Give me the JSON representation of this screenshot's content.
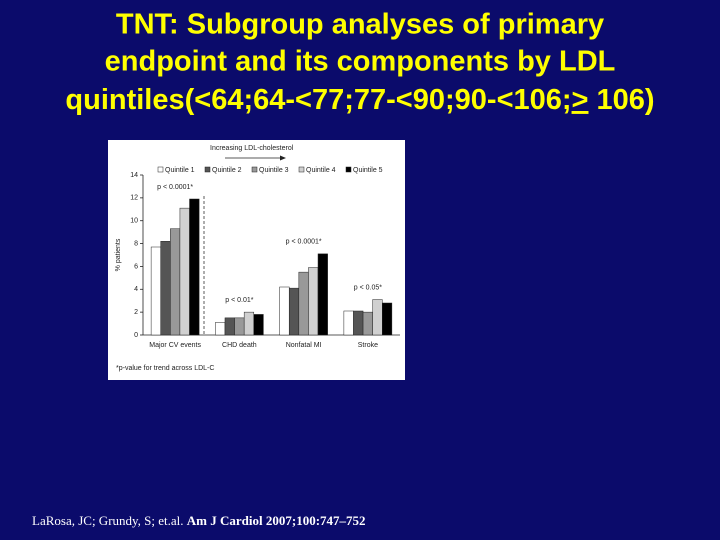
{
  "slide": {
    "title_lines": [
      "TNT: Subgroup analyses of primary",
      "endpoint and its components by LDL",
      "quintiles(<64;64-<77;77-<90;90-<106;"
    ],
    "title_underlined": ">",
    "title_end": " 106)",
    "citation_authors": "LaRosa, JC; Grundy, S; et.al.",
    "citation_journal": "Am J Cardiol 2007;100:747–752"
  },
  "chart_data": {
    "type": "bar",
    "header": "Increasing LDL-cholesterol",
    "ylabel": "% patients",
    "footnote": "*p-value for trend across LDL-C",
    "categories": [
      "Major CV events",
      "CHD death",
      "Nonfatal MI",
      "Stroke"
    ],
    "annotations": [
      "p < 0.0001*",
      "p < 0.01*",
      "p < 0.0001*",
      "p < 0.05*"
    ],
    "series": [
      {
        "name": "Quintile 1",
        "color": "#ffffff",
        "values": [
          7.7,
          1.1,
          4.2,
          2.1
        ]
      },
      {
        "name": "Quintile 2",
        "color": "#555555",
        "values": [
          8.2,
          1.5,
          4.1,
          2.1
        ]
      },
      {
        "name": "Quintile 3",
        "color": "#999999",
        "values": [
          9.3,
          1.5,
          5.5,
          2.0
        ]
      },
      {
        "name": "Quintile 4",
        "color": "#d0d0d0",
        "values": [
          11.1,
          2.0,
          5.9,
          3.1
        ]
      },
      {
        "name": "Quintile 5",
        "color": "#000000",
        "values": [
          11.9,
          1.8,
          7.1,
          2.8
        ]
      }
    ],
    "ylim": [
      0,
      14
    ],
    "yticks": [
      0,
      2,
      4,
      6,
      8,
      10,
      12,
      14
    ]
  }
}
